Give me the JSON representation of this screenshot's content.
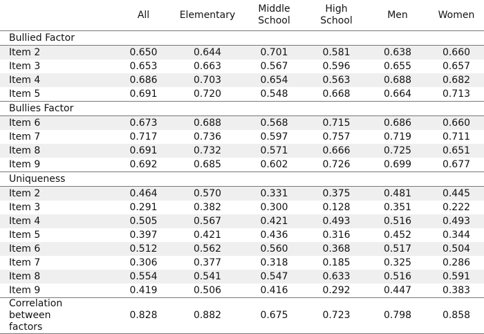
{
  "table": {
    "columns": [
      "All",
      "Elementary",
      "Middle School",
      "High School",
      "Men",
      "Women"
    ],
    "sections": [
      {
        "title": "Bullied Factor",
        "rows": [
          {
            "label": "Item 2",
            "values": [
              "0.650",
              "0.644",
              "0.701",
              "0.581",
              "0.638",
              "0.660"
            ]
          },
          {
            "label": "Item 3",
            "values": [
              "0.653",
              "0.663",
              "0.567",
              "0.596",
              "0.655",
              "0.657"
            ]
          },
          {
            "label": "Item 4",
            "values": [
              "0.686",
              "0.703",
              "0.654",
              "0.563",
              "0.688",
              "0.682"
            ]
          },
          {
            "label": "Item 5",
            "values": [
              "0.691",
              "0.720",
              "0.548",
              "0.668",
              "0.664",
              "0.713"
            ]
          }
        ]
      },
      {
        "title": "Bullies Factor",
        "rows": [
          {
            "label": "Item 6",
            "values": [
              "0.673",
              "0.688",
              "0.568",
              "0.715",
              "0.686",
              "0.660"
            ]
          },
          {
            "label": "Item 7",
            "values": [
              "0.717",
              "0.736",
              "0.597",
              "0.757",
              "0.719",
              "0.711"
            ]
          },
          {
            "label": "Item 8",
            "values": [
              "0.691",
              "0.732",
              "0.571",
              "0.666",
              "0.725",
              "0.651"
            ]
          },
          {
            "label": "Item 9",
            "values": [
              "0.692",
              "0.685",
              "0.602",
              "0.726",
              "0.699",
              "0.677"
            ]
          }
        ]
      },
      {
        "title": "Uniqueness",
        "rows": [
          {
            "label": "Item 2",
            "values": [
              "0.464",
              "0.570",
              "0.331",
              "0.375",
              "0.481",
              "0.445"
            ]
          },
          {
            "label": "Item 3",
            "values": [
              "0.291",
              "0.382",
              "0.300",
              "0.128",
              "0.351",
              "0.222"
            ]
          },
          {
            "label": "Item 4",
            "values": [
              "0.505",
              "0.567",
              "0.421",
              "0.493",
              "0.516",
              "0.493"
            ]
          },
          {
            "label": "Item 5",
            "values": [
              "0.397",
              "0.421",
              "0.436",
              "0.316",
              "0.452",
              "0.344"
            ]
          },
          {
            "label": "Item 6",
            "values": [
              "0.512",
              "0.562",
              "0.560",
              "0.368",
              "0.517",
              "0.504"
            ]
          },
          {
            "label": "Item 7",
            "values": [
              "0.306",
              "0.377",
              "0.318",
              "0.185",
              "0.325",
              "0.286"
            ]
          },
          {
            "label": "Item 8",
            "values": [
              "0.554",
              "0.541",
              "0.547",
              "0.633",
              "0.516",
              "0.591"
            ]
          },
          {
            "label": "Item 9",
            "values": [
              "0.419",
              "0.506",
              "0.416",
              "0.292",
              "0.447",
              "0.383"
            ]
          }
        ]
      }
    ],
    "footer": {
      "label": "Correlation between factors",
      "values": [
        "0.828",
        "0.882",
        "0.675",
        "0.723",
        "0.798",
        "0.858"
      ]
    }
  }
}
